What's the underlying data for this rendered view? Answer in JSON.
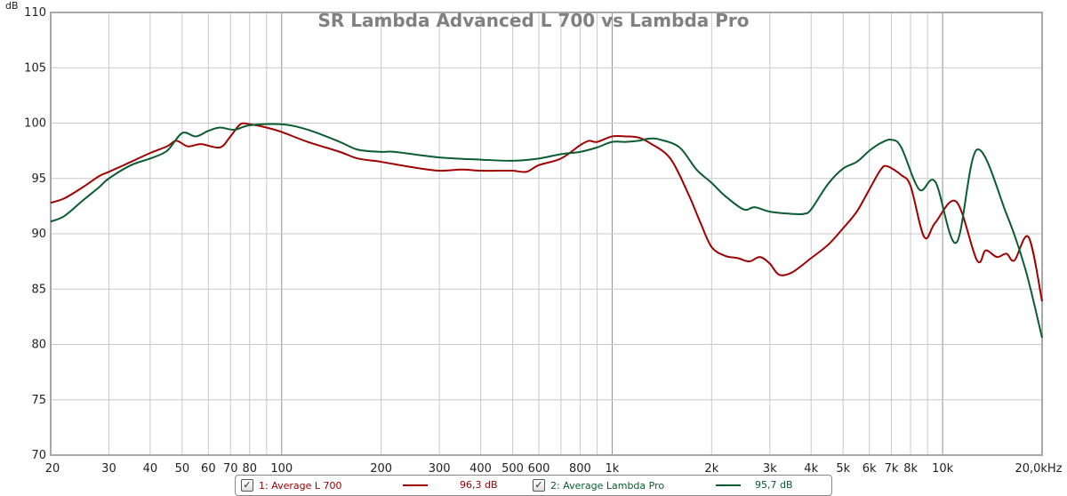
{
  "chart_data": {
    "type": "line",
    "title": "SR Lambda Advanced L 700 vs Lambda Pro",
    "ylabel": "dB",
    "xlabel": "",
    "xscale": "log",
    "xlim": [
      20,
      20000
    ],
    "ylim": [
      70,
      110
    ],
    "grid": true,
    "legend_placement": "bottom",
    "y_ticks": [
      70,
      75,
      80,
      85,
      90,
      95,
      100,
      105,
      110
    ],
    "x_ticks": [
      {
        "v": 20,
        "label": "20"
      },
      {
        "v": 30,
        "label": "30"
      },
      {
        "v": 40,
        "label": "40"
      },
      {
        "v": 50,
        "label": "50"
      },
      {
        "v": 60,
        "label": "60"
      },
      {
        "v": 70,
        "label": "70"
      },
      {
        "v": 80,
        "label": "80"
      },
      {
        "v": 100,
        "label": "100"
      },
      {
        "v": 200,
        "label": "200"
      },
      {
        "v": 300,
        "label": "300"
      },
      {
        "v": 400,
        "label": "400"
      },
      {
        "v": 500,
        "label": "500"
      },
      {
        "v": 600,
        "label": "600"
      },
      {
        "v": 800,
        "label": "800"
      },
      {
        "v": 1000,
        "label": "1k"
      },
      {
        "v": 2000,
        "label": "2k"
      },
      {
        "v": 3000,
        "label": "3k"
      },
      {
        "v": 4000,
        "label": "4k"
      },
      {
        "v": 5000,
        "label": "5k"
      },
      {
        "v": 6000,
        "label": "6k"
      },
      {
        "v": 7000,
        "label": "7k"
      },
      {
        "v": 8000,
        "label": "8k"
      },
      {
        "v": 10000,
        "label": "10k"
      },
      {
        "v": 20000,
        "label": "20,0kHz"
      }
    ],
    "series": [
      {
        "name": "1: Average L 700",
        "legend_value": "96,3 dB",
        "color": "#a00000",
        "points": [
          [
            20,
            92.8
          ],
          [
            22,
            93.2
          ],
          [
            25,
            94.2
          ],
          [
            28,
            95.2
          ],
          [
            30,
            95.6
          ],
          [
            35,
            96.5
          ],
          [
            40,
            97.3
          ],
          [
            45,
            97.9
          ],
          [
            48,
            98.4
          ],
          [
            52,
            97.9
          ],
          [
            57,
            98.1
          ],
          [
            65,
            97.8
          ],
          [
            70,
            98.8
          ],
          [
            75,
            99.9
          ],
          [
            80,
            99.9
          ],
          [
            90,
            99.6
          ],
          [
            100,
            99.2
          ],
          [
            120,
            98.3
          ],
          [
            150,
            97.4
          ],
          [
            170,
            96.8
          ],
          [
            200,
            96.5
          ],
          [
            250,
            96.0
          ],
          [
            300,
            95.7
          ],
          [
            350,
            95.8
          ],
          [
            400,
            95.7
          ],
          [
            450,
            95.7
          ],
          [
            500,
            95.7
          ],
          [
            550,
            95.6
          ],
          [
            600,
            96.2
          ],
          [
            700,
            96.8
          ],
          [
            800,
            98.0
          ],
          [
            850,
            98.4
          ],
          [
            900,
            98.3
          ],
          [
            1000,
            98.8
          ],
          [
            1100,
            98.8
          ],
          [
            1200,
            98.7
          ],
          [
            1300,
            98.2
          ],
          [
            1500,
            96.8
          ],
          [
            1700,
            93.6
          ],
          [
            1850,
            91.0
          ],
          [
            2000,
            88.8
          ],
          [
            2200,
            88.0
          ],
          [
            2400,
            87.8
          ],
          [
            2600,
            87.5
          ],
          [
            2800,
            87.9
          ],
          [
            3000,
            87.3
          ],
          [
            3200,
            86.3
          ],
          [
            3500,
            86.5
          ],
          [
            4000,
            87.8
          ],
          [
            4500,
            89.0
          ],
          [
            5000,
            90.5
          ],
          [
            5500,
            92.0
          ],
          [
            6000,
            94.0
          ],
          [
            6500,
            95.8
          ],
          [
            6800,
            96.1
          ],
          [
            7500,
            95.3
          ],
          [
            8000,
            94.3
          ],
          [
            8800,
            89.7
          ],
          [
            9500,
            91.0
          ],
          [
            11000,
            92.9
          ],
          [
            12700,
            87.6
          ],
          [
            13500,
            88.5
          ],
          [
            14600,
            87.9
          ],
          [
            15600,
            88.2
          ],
          [
            16500,
            87.6
          ],
          [
            18200,
            89.7
          ],
          [
            20000,
            83.9
          ]
        ]
      },
      {
        "name": "2: Average Lambda Pro",
        "legend_value": "95,7 dB",
        "color": "#0a5c32",
        "points": [
          [
            20,
            91.1
          ],
          [
            22,
            91.6
          ],
          [
            25,
            93.0
          ],
          [
            28,
            94.2
          ],
          [
            30,
            95.0
          ],
          [
            35,
            96.2
          ],
          [
            40,
            96.8
          ],
          [
            45,
            97.5
          ],
          [
            50,
            99.1
          ],
          [
            55,
            98.8
          ],
          [
            60,
            99.3
          ],
          [
            65,
            99.6
          ],
          [
            72,
            99.4
          ],
          [
            80,
            99.8
          ],
          [
            100,
            99.9
          ],
          [
            120,
            99.4
          ],
          [
            150,
            98.3
          ],
          [
            170,
            97.6
          ],
          [
            200,
            97.4
          ],
          [
            220,
            97.4
          ],
          [
            300,
            96.9
          ],
          [
            400,
            96.7
          ],
          [
            500,
            96.6
          ],
          [
            600,
            96.8
          ],
          [
            700,
            97.2
          ],
          [
            800,
            97.4
          ],
          [
            900,
            97.8
          ],
          [
            1000,
            98.3
          ],
          [
            1100,
            98.3
          ],
          [
            1200,
            98.4
          ],
          [
            1300,
            98.6
          ],
          [
            1400,
            98.5
          ],
          [
            1600,
            97.8
          ],
          [
            1800,
            95.8
          ],
          [
            2000,
            94.6
          ],
          [
            2200,
            93.4
          ],
          [
            2500,
            92.2
          ],
          [
            2700,
            92.4
          ],
          [
            3000,
            92.0
          ],
          [
            3500,
            91.8
          ],
          [
            3800,
            91.8
          ],
          [
            4000,
            92.2
          ],
          [
            4500,
            94.5
          ],
          [
            5000,
            95.9
          ],
          [
            5500,
            96.5
          ],
          [
            6000,
            97.5
          ],
          [
            6500,
            98.2
          ],
          [
            7000,
            98.5
          ],
          [
            7500,
            97.8
          ],
          [
            8500,
            94.0
          ],
          [
            9500,
            94.7
          ],
          [
            11000,
            89.2
          ],
          [
            12700,
            97.6
          ],
          [
            15600,
            91.8
          ],
          [
            17800,
            86.8
          ],
          [
            20000,
            80.6
          ]
        ]
      }
    ]
  }
}
